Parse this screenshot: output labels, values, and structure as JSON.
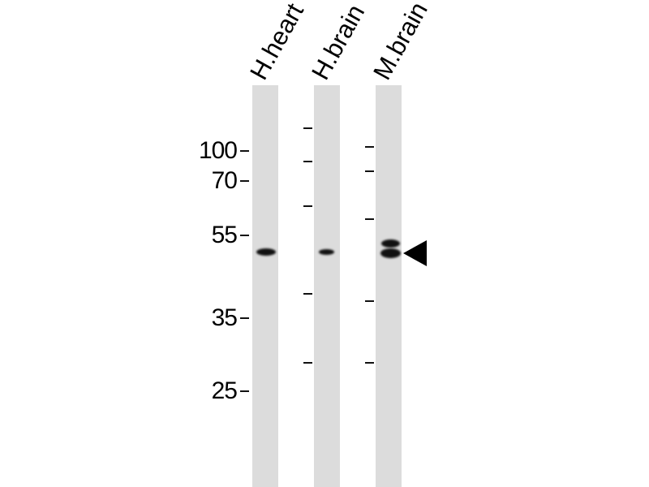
{
  "lanes": [
    {
      "label": "H.heart"
    },
    {
      "label": "H.brain"
    },
    {
      "label": "M.brain"
    }
  ],
  "mw_markers": [
    "100",
    "70",
    "55",
    "35",
    "25"
  ],
  "colors": {
    "lane": "#dcdcdc",
    "band": "#111111"
  },
  "arrow_icon": "arrowhead-left-icon"
}
